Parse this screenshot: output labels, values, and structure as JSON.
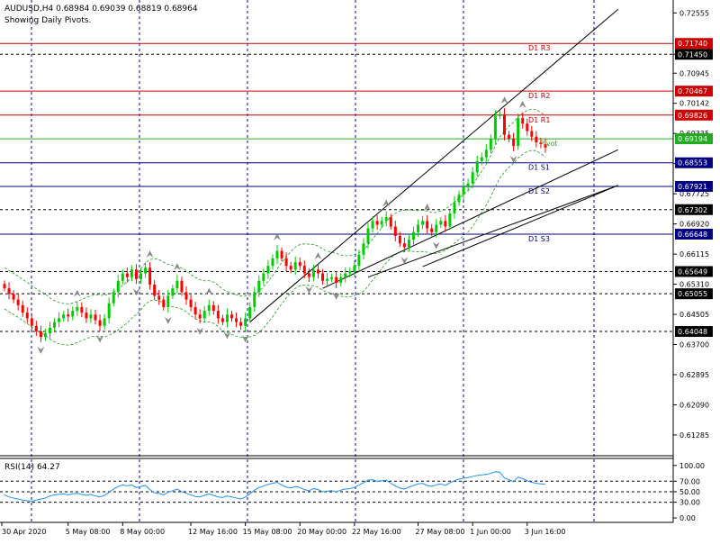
{
  "header": {
    "symbol_line": "AUDUSD,H4  0.68984 0.69039 0.68819 0.68964",
    "subtitle": "Showing Daily Pivots."
  },
  "colors": {
    "bull": "#00cc00",
    "bear": "#ff0000",
    "grid": "#0000aa",
    "resistance": "#cc0000",
    "pivot": "#22aa22",
    "support": "#000080",
    "trend": "#000000",
    "envelope": "#1a9e1a",
    "rsi_line": "#1e90ff",
    "axis_text": "#000000",
    "badge_text": "#ffffff",
    "fractal": "#888888"
  },
  "chart_data": [
    {
      "type": "candlestick",
      "title": "AUDUSD,H4",
      "ylim": [
        0.6073,
        0.729
      ],
      "y_ticks": [
        0.72555,
        0.7145,
        0.70945,
        0.70142,
        0.69335,
        0.6853,
        0.67725,
        0.6692,
        0.66115,
        0.6531,
        0.64505,
        0.637,
        0.62895,
        0.6209,
        0.61285
      ],
      "x_ticks": [
        "30 Apr 2020",
        "5 May 08:00",
        "8 May 00:00",
        "12 May 16:00",
        "15 May 08:00",
        "20 May 00:00",
        "22 May 16:00",
        "27 May 08:00",
        "1 Jun 00:00",
        "3 Jun 16:00"
      ],
      "x_tick_positions": [
        0,
        14,
        26,
        41,
        53,
        65,
        77,
        91,
        103,
        115
      ],
      "grid": true,
      "candle_count": 120,
      "close": [
        0.652,
        0.6505,
        0.649,
        0.6475,
        0.6455,
        0.644,
        0.642,
        0.6405,
        0.639,
        0.64,
        0.6415,
        0.643,
        0.644,
        0.645,
        0.6445,
        0.646,
        0.647,
        0.6455,
        0.644,
        0.645,
        0.6435,
        0.642,
        0.644,
        0.648,
        0.651,
        0.654,
        0.656,
        0.655,
        0.657,
        0.6545,
        0.656,
        0.6575,
        0.653,
        0.65,
        0.649,
        0.647,
        0.65,
        0.652,
        0.654,
        0.651,
        0.649,
        0.647,
        0.645,
        0.644,
        0.646,
        0.6475,
        0.646,
        0.644,
        0.643,
        0.645,
        0.644,
        0.643,
        0.642,
        0.644,
        0.647,
        0.651,
        0.654,
        0.656,
        0.658,
        0.66,
        0.662,
        0.66,
        0.658,
        0.657,
        0.659,
        0.658,
        0.656,
        0.655,
        0.657,
        0.656,
        0.654,
        0.6545,
        0.655,
        0.6535,
        0.655,
        0.656,
        0.6565,
        0.658,
        0.661,
        0.664,
        0.668,
        0.67,
        0.669,
        0.67,
        0.671,
        0.6685,
        0.666,
        0.664,
        0.663,
        0.665,
        0.667,
        0.669,
        0.67,
        0.668,
        0.667,
        0.669,
        0.67,
        0.6685,
        0.672,
        0.675,
        0.677,
        0.679,
        0.68,
        0.683,
        0.686,
        0.687,
        0.689,
        0.692,
        0.698,
        0.6985,
        0.693,
        0.692,
        0.69,
        0.6975,
        0.696,
        0.694,
        0.6925,
        0.691,
        0.6905,
        0.6896
      ],
      "pivot_levels": [
        {
          "name": "D1 R3",
          "value": 0.7174,
          "kind": "resistance"
        },
        {
          "name": "D1 R2",
          "value": 0.70467,
          "kind": "resistance"
        },
        {
          "name": "D1 R1",
          "value": 0.69826,
          "kind": "resistance"
        },
        {
          "name": "Pivot",
          "value": 0.69194,
          "kind": "pivot"
        },
        {
          "name": "D1 S1",
          "value": 0.68553,
          "kind": "support"
        },
        {
          "name": "D1 S2",
          "value": 0.67921,
          "kind": "support"
        },
        {
          "name": "D1 S3",
          "value": 0.66648,
          "kind": "support"
        }
      ],
      "dashed_levels": [
        0.7145,
        0.67302,
        0.65649,
        0.65055,
        0.64048
      ],
      "price_badges": [
        {
          "label": "0.71740",
          "value": 0.7174,
          "bg": "#cc0000"
        },
        {
          "label": "0.71450",
          "value": 0.7145,
          "bg": "#000000"
        },
        {
          "label": "0.70467",
          "value": 0.70467,
          "bg": "#cc0000"
        },
        {
          "label": "0.69826",
          "value": 0.69826,
          "bg": "#cc0000"
        },
        {
          "label": "0.69194",
          "value": 0.69194,
          "bg": "#22aa22"
        },
        {
          "label": "0.68553",
          "value": 0.68553,
          "bg": "#000080"
        },
        {
          "label": "0.67921",
          "value": 0.67921,
          "bg": "#000080"
        },
        {
          "label": "0.67302",
          "value": 0.67302,
          "bg": "#000000"
        },
        {
          "label": "0.66648",
          "value": 0.66648,
          "bg": "#000080"
        },
        {
          "label": "0.65649",
          "value": 0.65649,
          "bg": "#000000"
        },
        {
          "label": "0.65055",
          "value": 0.65055,
          "bg": "#000000"
        },
        {
          "label": "0.64048",
          "value": 0.64048,
          "bg": "#000000"
        }
      ],
      "trendlines": [
        {
          "x1": 54,
          "y1": 0.643,
          "x2": 135,
          "y2": 0.7265
        },
        {
          "x1": 70,
          "y1": 0.652,
          "x2": 135,
          "y2": 0.689
        },
        {
          "x1": 80,
          "y1": 0.655,
          "x2": 135,
          "y2": 0.6795
        },
        {
          "x1": 92,
          "y1": 0.6578,
          "x2": 135,
          "y2": 0.6795
        }
      ]
    },
    {
      "type": "line",
      "title": "RSI(14) 64.27",
      "ylim": [
        -5,
        110
      ],
      "y_ticks": [
        100.0,
        70.0,
        50.0,
        30.0,
        0.0
      ],
      "dashed_levels": [
        70,
        50,
        30
      ],
      "values": [
        44,
        40,
        38,
        36,
        34,
        33,
        32,
        34,
        36,
        38,
        42,
        44,
        45,
        46,
        44,
        46,
        47,
        45,
        43,
        45,
        42,
        40,
        43,
        49,
        55,
        60,
        63,
        61,
        63,
        58,
        60,
        62,
        54,
        48,
        47,
        44,
        49,
        52,
        55,
        50,
        47,
        44,
        41,
        40,
        43,
        46,
        43,
        40,
        39,
        42,
        40,
        38,
        36,
        40,
        46,
        53,
        58,
        61,
        64,
        66,
        68,
        63,
        59,
        57,
        60,
        58,
        54,
        52,
        56,
        54,
        50,
        51,
        52,
        50,
        53,
        55,
        56,
        58,
        63,
        67,
        72,
        73,
        70,
        71,
        72,
        66,
        61,
        57,
        55,
        59,
        62,
        65,
        66,
        62,
        60,
        63,
        65,
        62,
        67,
        71,
        74,
        76,
        77,
        79,
        81,
        82,
        83,
        85,
        88,
        87,
        76,
        73,
        69,
        78,
        75,
        71,
        68,
        66,
        65,
        64
      ]
    }
  ]
}
